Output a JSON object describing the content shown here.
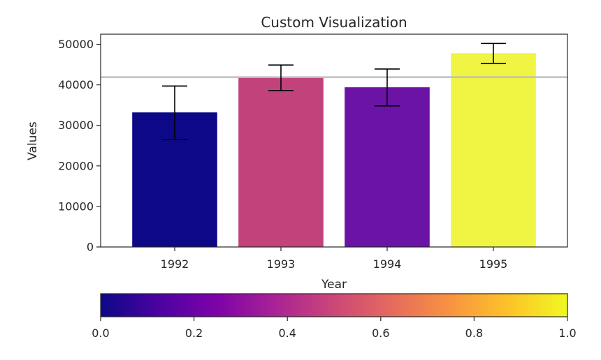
{
  "chart_data": {
    "type": "bar",
    "title": "Custom Visualization",
    "xlabel": "Year",
    "ylabel": "Values",
    "categories": [
      "1992",
      "1993",
      "1994",
      "1995"
    ],
    "values": [
      33200,
      41800,
      39400,
      47800
    ],
    "error_low": [
      26500,
      38600,
      34800,
      45300
    ],
    "error_high": [
      39700,
      44900,
      43900,
      50200
    ],
    "bar_colors": [
      "#0d0887",
      "#c2427c",
      "#6b13a5",
      "#eff542"
    ],
    "reference_line": 41900,
    "reference_line_color": "#bfbfbf",
    "ylim": [
      0,
      52500
    ],
    "yticks": [
      0,
      10000,
      20000,
      30000,
      40000,
      50000
    ],
    "grid": false,
    "colorbar": {
      "colormap": "plasma",
      "orientation": "horizontal",
      "range": [
        0.0,
        1.0
      ],
      "ticks": [
        "0.0",
        "0.2",
        "0.4",
        "0.6",
        "0.8",
        "1.0"
      ]
    }
  }
}
